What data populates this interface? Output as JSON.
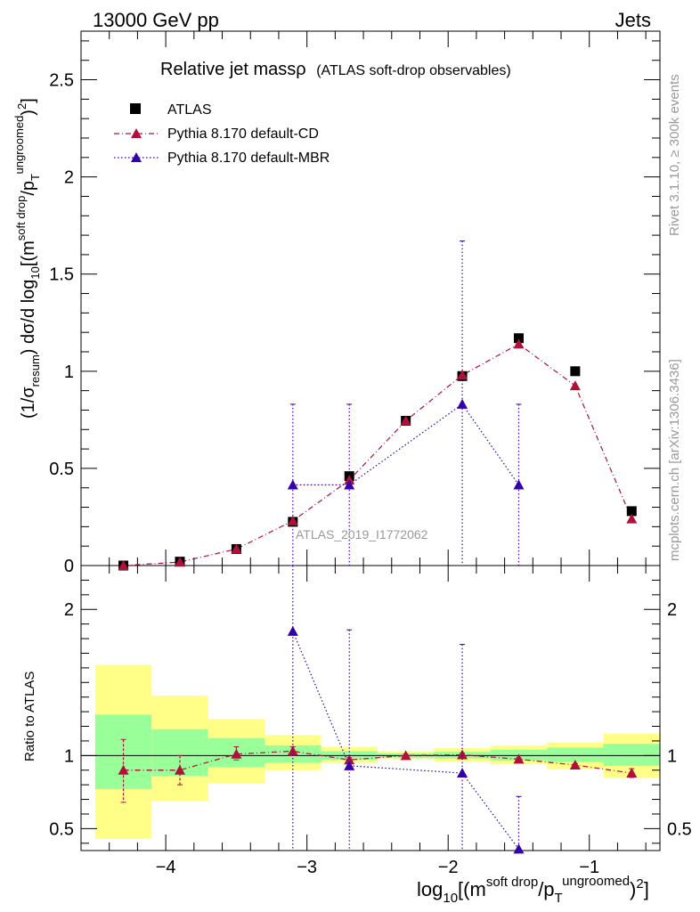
{
  "header": {
    "left": "13000 GeV pp",
    "right": "Jets"
  },
  "sidebar": {
    "rivet": "Rivet 3.1.10, ≥ 300k events",
    "mcplots": "mcplots.cern.ch [arXiv:1306.3436]"
  },
  "main_title": "Relative jet massρ",
  "main_subtitle": "(ATLAS soft-drop observables)",
  "analysis_id": "ATLAS_2019_I1772062",
  "colors": {
    "data": "#000000",
    "cd": "#b0103a",
    "mbr": "#3300aa",
    "band_inner": "#99ff99",
    "band_outer": "#ffff88"
  },
  "chart_data": {
    "type": "scatter",
    "title": "Relative jet massρ (ATLAS soft-drop observables)",
    "x_range": [
      -4.6,
      -0.5
    ],
    "xlabel_parts": {
      "pre": "log",
      "sub10": "10",
      "mid": "[(m",
      "sup1": "soft drop",
      "div": "/p",
      "subT": "T",
      "sup2": "ungroomed",
      "end": ")",
      "sq": "2",
      "close": "]"
    },
    "ylabel_parts": {
      "a": "(1/σ",
      "sub": "resum",
      "b": ") dσ/d log",
      "sub10": "10",
      "c": "[(m",
      "sup1": "soft drop",
      "d": "/p",
      "subT": "T",
      "sup2": "ungroomed",
      "e": ")",
      "sq": "2",
      "f": "]"
    },
    "x_ticks": [
      {
        "v": -4,
        "label": "−4"
      },
      {
        "v": -3,
        "label": "−3"
      },
      {
        "v": -2,
        "label": "−2"
      },
      {
        "v": -1,
        "label": "−1"
      }
    ],
    "main": {
      "y_range": [
        0,
        2.75
      ],
      "y_ticks": [
        {
          "v": 0,
          "label": "0"
        },
        {
          "v": 0.5,
          "label": "0.5"
        },
        {
          "v": 1,
          "label": "1"
        },
        {
          "v": 1.5,
          "label": "1.5"
        },
        {
          "v": 2,
          "label": "2"
        },
        {
          "v": 2.5,
          "label": "2.5"
        }
      ]
    },
    "ratio": {
      "y_range": [
        0.35,
        2.3
      ],
      "ylabel": "Ratio to ATLAS",
      "y_ticks": [
        {
          "v": 0.5,
          "label": "0.5"
        },
        {
          "v": 1,
          "label": "1"
        },
        {
          "v": 2,
          "label": "2"
        }
      ]
    },
    "legend": [
      {
        "key": "data",
        "label": "ATLAS"
      },
      {
        "key": "cd",
        "label": "Pythia 8.170 default-CD"
      },
      {
        "key": "mbr",
        "label": "Pythia 8.170 default-MBR"
      }
    ],
    "atlas": [
      {
        "x": -4.3,
        "y": 0.0
      },
      {
        "x": -3.9,
        "y": 0.02
      },
      {
        "x": -3.5,
        "y": 0.085
      },
      {
        "x": -3.1,
        "y": 0.225
      },
      {
        "x": -2.7,
        "y": 0.46
      },
      {
        "x": -2.3,
        "y": 0.745
      },
      {
        "x": -1.9,
        "y": 0.975
      },
      {
        "x": -1.5,
        "y": 1.17
      },
      {
        "x": -1.1,
        "y": 1.0
      },
      {
        "x": -0.7,
        "y": 0.28
      }
    ],
    "cd": [
      {
        "x": -4.3,
        "y": 0.0
      },
      {
        "x": -3.9,
        "y": 0.018
      },
      {
        "x": -3.5,
        "y": 0.085
      },
      {
        "x": -3.1,
        "y": 0.23
      },
      {
        "x": -2.7,
        "y": 0.44
      },
      {
        "x": -2.3,
        "y": 0.745
      },
      {
        "x": -1.9,
        "y": 0.98
      },
      {
        "x": -1.5,
        "y": 1.14
      },
      {
        "x": -1.1,
        "y": 0.925
      },
      {
        "x": -0.7,
        "y": 0.24
      }
    ],
    "mbr": [
      {
        "x": -3.1,
        "y": 0.415,
        "err_up": 0.415,
        "err_dn": 0.415,
        "hbar": true
      },
      {
        "x": -2.7,
        "y": 0.415,
        "err_up": 0.415,
        "err_dn": 0.415,
        "hbar": true
      },
      {
        "x": -1.9,
        "y": 0.83,
        "err_up": 0.84,
        "err_dn": 0.83
      },
      {
        "x": -1.5,
        "y": 0.415,
        "err_up": 0.415,
        "err_dn": 0.415
      }
    ],
    "ratio_bands": [
      {
        "x0": -4.5,
        "x1": -4.1,
        "inner": [
          0.77,
          1.28
        ],
        "outer": [
          0.43,
          1.62
        ]
      },
      {
        "x0": -4.1,
        "x1": -3.7,
        "inner": [
          0.86,
          1.18
        ],
        "outer": [
          0.69,
          1.41
        ]
      },
      {
        "x0": -3.7,
        "x1": -3.3,
        "inner": [
          0.92,
          1.12
        ],
        "outer": [
          0.81,
          1.25
        ]
      },
      {
        "x0": -3.3,
        "x1": -2.9,
        "inner": [
          0.95,
          1.07
        ],
        "outer": [
          0.9,
          1.14
        ]
      },
      {
        "x0": -2.9,
        "x1": -2.5,
        "inner": [
          0.97,
          1.03
        ],
        "outer": [
          0.95,
          1.06
        ]
      },
      {
        "x0": -2.5,
        "x1": -2.1,
        "inner": [
          0.985,
          1.015
        ],
        "outer": [
          0.975,
          1.03
        ]
      },
      {
        "x0": -2.1,
        "x1": -1.7,
        "inner": [
          0.98,
          1.025
        ],
        "outer": [
          0.96,
          1.05
        ]
      },
      {
        "x0": -1.7,
        "x1": -1.3,
        "inner": [
          0.965,
          1.04
        ],
        "outer": [
          0.94,
          1.07
        ]
      },
      {
        "x0": -1.3,
        "x1": -0.9,
        "inner": [
          0.955,
          1.055
        ],
        "outer": [
          0.91,
          1.09
        ]
      },
      {
        "x0": -0.9,
        "x1": -0.5,
        "inner": [
          0.93,
          1.08
        ],
        "outer": [
          0.85,
          1.15
        ]
      }
    ],
    "ratio_cd": [
      {
        "x": -4.3,
        "y": 0.9,
        "err_up": 0.21,
        "err_dn": 0.22
      },
      {
        "x": -3.9,
        "y": 0.9,
        "err_up": 0.1,
        "err_dn": 0.1
      },
      {
        "x": -3.5,
        "y": 1.01,
        "err_up": 0.05,
        "err_dn": 0.04
      },
      {
        "x": -3.1,
        "y": 1.03,
        "err_up": 0.03,
        "err_dn": 0.03
      },
      {
        "x": -2.7,
        "y": 0.97,
        "err_up": 0.015,
        "err_dn": 0.015
      },
      {
        "x": -2.3,
        "y": 1.0,
        "err_up": 0.01,
        "err_dn": 0.01
      },
      {
        "x": -1.9,
        "y": 1.005,
        "err_up": 0.01,
        "err_dn": 0.01
      },
      {
        "x": -1.5,
        "y": 0.975,
        "err_up": 0.01,
        "err_dn": 0.01
      },
      {
        "x": -1.1,
        "y": 0.935,
        "err_up": 0.01,
        "err_dn": 0.01
      },
      {
        "x": -0.7,
        "y": 0.88,
        "err_up": 0.03,
        "err_dn": 0.03
      }
    ],
    "ratio_mbr": [
      {
        "x": -3.1,
        "y": 1.85,
        "err_up": 1.85,
        "err_dn": 1.85
      },
      {
        "x": -2.7,
        "y": 0.93,
        "err_up": 0.93,
        "err_dn": 0.93
      },
      {
        "x": -1.9,
        "y": 0.88,
        "err_up": 0.88,
        "err_dn": 0.88
      },
      {
        "x": -1.5,
        "y": 0.36,
        "err_up": 0.36,
        "err_dn": 0.36
      }
    ]
  }
}
